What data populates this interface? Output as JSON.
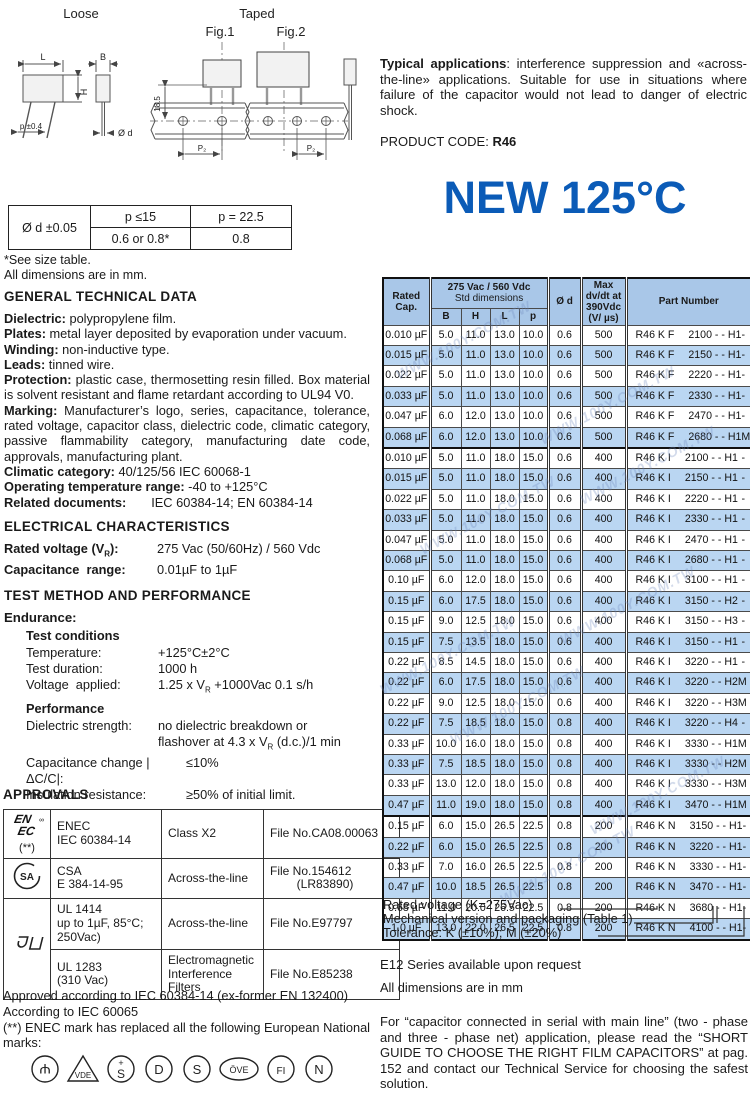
{
  "watermark": "WWW.100Y.COM.TW",
  "diagrams": {
    "loose_label": "Loose",
    "taped_label": "Taped",
    "fig1_label": "Fig.1",
    "fig2_label": "Fig.2",
    "dim_L": "L",
    "dim_B": "B",
    "dim_H": "H",
    "dim_p": "p ±0.4",
    "dim_d": "Ø d",
    "dim_185": "18.5",
    "dim_p2": "P₂"
  },
  "size_table": {
    "row_label": "Ø d ±0.05",
    "col1_header": "p ≤15",
    "col2_header": "p = 22.5",
    "col1_value": "0.6 or 0.8*",
    "col2_value": "0.8",
    "note1": "*See size table.",
    "note2": "All dimensions are in mm."
  },
  "typical": {
    "lead": "Typical applications",
    "text": ": interference suppression and «across-the-line» applications. Suitable for use in situations where failure of the capacitor would not lead to danger of electric shock."
  },
  "product_code": {
    "label": "PRODUCT CODE: ",
    "value": "R46"
  },
  "banner": {
    "text": "NEW 125°C",
    "color": "#0b5bb7"
  },
  "general": {
    "heading": "GENERAL TECHNICAL DATA",
    "items": [
      {
        "label": "Dielectric:",
        "text": "polypropylene film."
      },
      {
        "label": "Plates:",
        "text": "metal layer deposited by evaporation under vacuum."
      },
      {
        "label": "Winding:",
        "text": "non-inductive type."
      },
      {
        "label": "Leads:",
        "text": "tinned wire."
      },
      {
        "label": "Protection:",
        "text": "plastic case, thermosetting resin filled. Box material is solvent resistant and flame retardant according to UL94 V0."
      },
      {
        "label": "Marking:",
        "text": "Manufacturer’s logo, series, capacitance, tolerance, rated voltage, capacitor class, dielectric code, climatic category, passive flammability category, manufacturing date code, approvals, manufacturing plant."
      },
      {
        "label": "Climatic category:",
        "text": "40/125/56 IEC 60068-1"
      },
      {
        "label": "Operating temperature range:",
        "text": "-40 to +125°C"
      },
      {
        "label": "Related documents:",
        "text": "      IEC 60384-14; EN 60384-14"
      }
    ]
  },
  "electrical": {
    "heading": "ELECTRICAL CHARACTERISTICS",
    "rows": [
      {
        "label": "Rated voltage (V_R):",
        "value": "275 Vac (50/60Hz) / 560 Vdc"
      },
      {
        "label": "Capacitance  range:",
        "value": "0.01µF to 1µF"
      }
    ]
  },
  "test": {
    "heading": "TEST METHOD AND PERFORMANCE",
    "endurance": "Endurance:",
    "cond_heading": "Test conditions",
    "cond_rows": [
      {
        "label": "Temperature:",
        "value": "+125°C±2°C"
      },
      {
        "label": "Test duration:",
        "value": "1000 h"
      },
      {
        "label": "Voltage  applied:",
        "value": "1.25 x V_R +1000Vac 0.1 s/h"
      }
    ],
    "perf_heading": "Performance",
    "perf_rows": [
      {
        "label": "Dielectric strength:",
        "value": "no dielectric breakdown or\nflashover at 4.3 x V_R (d.c.)/1 min",
        "wide": false
      },
      {
        "label": "Capacitance change |ΔC/C|:",
        "value": "≤10%",
        "wide": true
      },
      {
        "label": "Insulation resistance:",
        "value": "≥50% of initial limit.",
        "wide": true
      }
    ]
  },
  "approvals": {
    "heading": "APPROVALS",
    "rows": [
      {
        "logo": "enec",
        "logo_note": "(**)",
        "body": "ENEC\nIEC 60384-14",
        "cls": "Class X2",
        "file": "File No.CA08.00063"
      },
      {
        "logo": "csa",
        "logo_note": "",
        "body": "CSA\nE 384-14-95",
        "cls": "Across-the-line",
        "file": "File No.154612\n        (LR83890)"
      },
      {
        "logo": "ul",
        "logo_note": "",
        "body": "UL 1414\nup to 1µF, 85°C;\n250Vac)",
        "cls": "Across-the-line",
        "file": "File No.E97797"
      },
      {
        "logo": null,
        "logo_note": "",
        "body": "UL 1283\n(310 Vac)",
        "cls": "Electromagnetic\nInterference\nFilters",
        "file": "File No.E85238"
      }
    ],
    "footer1": "Approved according to IEC 60384-14 (ex-former EN 132400)",
    "footer2": "According to IEC 60065",
    "footer3": "(**) ENEC mark has replaced all the following European National marks:",
    "marks": [
      {
        "shape": "circle",
        "glyph": "Ψ",
        "name": "kema-mark"
      },
      {
        "shape": "triangle",
        "glyph": "VDE",
        "name": "vde-mark"
      },
      {
        "shape": "circle",
        "glyph": "+S",
        "name": "semko-mark"
      },
      {
        "shape": "circle",
        "glyph": "D",
        "name": "demko-mark"
      },
      {
        "shape": "circle",
        "glyph": "S",
        "name": "sev-mark"
      },
      {
        "shape": "oval",
        "glyph": "ÖVE",
        "name": "ove-mark"
      },
      {
        "shape": "circle",
        "glyph": "FI",
        "name": "fimko-mark"
      },
      {
        "shape": "circle",
        "glyph": "N",
        "name": "nemko-mark"
      }
    ]
  },
  "main_table": {
    "header": {
      "rated_cap": "Rated\nCap.",
      "std_group_line1": "275 Vac / 560 Vdc",
      "std_group_line2": "Std dimensions",
      "sub": [
        "B",
        "H",
        "L",
        "p"
      ],
      "diameter": "Ø d",
      "dvdt": "Max\ndv/dt at\n390Vdc\n(V/ µs)",
      "part_number": "Part Number"
    },
    "group_end_rows": [
      5,
      23
    ],
    "rows": [
      [
        "0.010 µF",
        "5.0",
        "11.0",
        "13.0",
        "10.0",
        "0.6",
        "500",
        "R46 K F",
        "2100 - - H1",
        "-"
      ],
      [
        "0.015 µF",
        "5.0",
        "11.0",
        "13.0",
        "10.0",
        "0.6",
        "500",
        "R46 K F",
        "2150 - - H1",
        "-"
      ],
      [
        "0.022 µF",
        "5.0",
        "11.0",
        "13.0",
        "10.0",
        "0.6",
        "500",
        "R46 K F",
        "2220 - - H1",
        "-"
      ],
      [
        "0.033 µF",
        "5.0",
        "11.0",
        "13.0",
        "10.0",
        "0.6",
        "500",
        "R46 K F",
        "2330 - - H1",
        "-"
      ],
      [
        "0.047 µF",
        "6.0",
        "12.0",
        "13.0",
        "10.0",
        "0.6",
        "500",
        "R46 K F",
        "2470 - - H1",
        "-"
      ],
      [
        "0.068 µF",
        "6.0",
        "12.0",
        "13.0",
        "10.0",
        "0.6",
        "500",
        "R46 K F",
        "2680 - - H1",
        "M"
      ],
      [
        "0.010 µF",
        "5.0",
        "11.0",
        "18.0",
        "15.0",
        "0.6",
        "400",
        "R46 K I",
        "2100 - - H1",
        "-"
      ],
      [
        "0.015 µF",
        "5.0",
        "11.0",
        "18.0",
        "15.0",
        "0.6",
        "400",
        "R46 K I",
        "2150 - - H1",
        "-"
      ],
      [
        "0.022 µF",
        "5.0",
        "11.0",
        "18.0",
        "15.0",
        "0.6",
        "400",
        "R46 K I",
        "2220 - - H1",
        "-"
      ],
      [
        "0.033 µF",
        "5.0",
        "11.0",
        "18.0",
        "15.0",
        "0.6",
        "400",
        "R46 K I",
        "2330 - - H1",
        "-"
      ],
      [
        "0.047 µF",
        "5.0",
        "11.0",
        "18.0",
        "15.0",
        "0.6",
        "400",
        "R46 K I",
        "2470 - - H1",
        "-"
      ],
      [
        "0.068 µF",
        "5.0",
        "11.0",
        "18.0",
        "15.0",
        "0.6",
        "400",
        "R46 K I",
        "2680 - - H1",
        "-"
      ],
      [
        "0.10 µF",
        "6.0",
        "12.0",
        "18.0",
        "15.0",
        "0.6",
        "400",
        "R46 K I",
        "3100 - - H1",
        "-"
      ],
      [
        "0.15 µF",
        "6.0",
        "17.5",
        "18.0",
        "15.0",
        "0.6",
        "400",
        "R46 K I",
        "3150 - - H2",
        "-"
      ],
      [
        "0.15 µF",
        "9.0",
        "12.5",
        "18.0",
        "15.0",
        "0.6",
        "400",
        "R46 K I",
        "3150 - - H3",
        "-"
      ],
      [
        "0.15 µF",
        "7.5",
        "13.5",
        "18.0",
        "15.0",
        "0.6",
        "400",
        "R46 K I",
        "3150 - - H1",
        "-"
      ],
      [
        "0.22 µF",
        "8.5",
        "14.5",
        "18.0",
        "15.0",
        "0.6",
        "400",
        "R46 K I",
        "3220 - - H1",
        "-"
      ],
      [
        "0.22 µF",
        "6.0",
        "17.5",
        "18.0",
        "15.0",
        "0.6",
        "400",
        "R46 K I",
        "3220 - - H2",
        "M"
      ],
      [
        "0.22 µF",
        "9.0",
        "12.5",
        "18.0",
        "15.0",
        "0.6",
        "400",
        "R46 K I",
        "3220 - - H3",
        "M"
      ],
      [
        "0.22 µF",
        "7.5",
        "18.5",
        "18.0",
        "15.0",
        "0.8",
        "400",
        "R46 K I",
        "3220 - - H4",
        "-"
      ],
      [
        "0.33 µF",
        "10.0",
        "16.0",
        "18.0",
        "15.0",
        "0.8",
        "400",
        "R46 K I",
        "3330 - - H1",
        "M"
      ],
      [
        "0.33 µF",
        "7.5",
        "18.5",
        "18.0",
        "15.0",
        "0.8",
        "400",
        "R46 K I",
        "3330 - - H2",
        "M"
      ],
      [
        "0.33 µF",
        "13.0",
        "12.0",
        "18.0",
        "15.0",
        "0.8",
        "400",
        "R46 K I",
        "3330 - - H3",
        "M"
      ],
      [
        "0.47 µF",
        "11.0",
        "19.0",
        "18.0",
        "15.0",
        "0.8",
        "400",
        "R46 K I",
        "3470 - - H1",
        "M"
      ],
      [
        "0.15 µF",
        "6.0",
        "15.0",
        "26.5",
        "22.5",
        "0.8",
        "200",
        "R46 K N",
        "3150 - - H1",
        "-"
      ],
      [
        "0.22 µF",
        "6.0",
        "15.0",
        "26.5",
        "22.5",
        "0.8",
        "200",
        "R46 K N",
        "3220 - - H1",
        "-"
      ],
      [
        "0.33 µF",
        "7.0",
        "16.0",
        "26.5",
        "22.5",
        "0.8",
        "200",
        "R46 K N",
        "3330 - - H1",
        "-"
      ],
      [
        "0.47 µF",
        "10.0",
        "18.5",
        "26.5",
        "22.5",
        "0.8",
        "200",
        "R46 K N",
        "3470 - - H1",
        "-"
      ],
      [
        "0.68 µF",
        "11.0",
        "20.0",
        "26.5",
        "22.5",
        "0.8",
        "200",
        "R46 K N",
        "3680 - - H1",
        "-"
      ],
      [
        "1.0 µF",
        "13.0",
        "22.0",
        "26.5",
        "22.5",
        "0.8",
        "200",
        "R46 K N",
        "4100 - - H1",
        "-"
      ]
    ]
  },
  "legend": [
    "Rated voltage (K=275Vac)",
    "Mechanical version and packaging (Table 1)",
    "Tolerance: K (±10%); M (±20%)"
  ],
  "notes": {
    "e12": "E12 Series available upon request",
    "dims": "All dimensions are in mm",
    "serial": "For “capacitor connected in serial with main line” (two - phase and three - phase net) application, please read the “SHORT GUIDE TO CHOOSE THE RIGHT FILM CAPACITORS” at pag. 152 and contact our Technical Service for choosing the safest solution."
  }
}
